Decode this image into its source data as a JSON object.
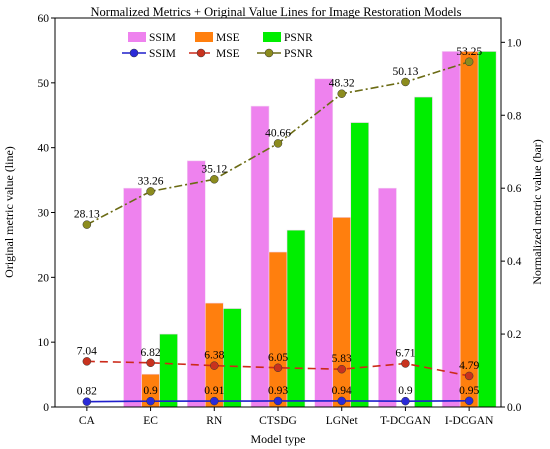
{
  "chart_data": {
    "type": "bar",
    "title": "Normalized Metrics + Original Value Lines for Image Restoration Models",
    "xlabel": "Model type",
    "ylabel_left": "Original metric value (line)",
    "ylabel_right": "Normalized metric value (bar)",
    "categories": [
      "CA",
      "EC",
      "RN",
      "CTSDG",
      "LGNet",
      "T-DCGAN",
      "I-DCGAN"
    ],
    "ylim_left": [
      0,
      60
    ],
    "ylim_right": [
      0,
      1.0667
    ],
    "yticks_left": [
      0,
      10,
      20,
      30,
      40,
      50,
      60
    ],
    "yticks_right": [
      0.0,
      0.2,
      0.4,
      0.6,
      0.8,
      1.0
    ],
    "bar_series": [
      {
        "name": "SSIM",
        "color": "#ee82ee",
        "values": [
          0.0,
          0.6,
          0.675,
          0.825,
          0.9,
          0.6,
          0.975
        ]
      },
      {
        "name": "MSE",
        "color": "#ff7f0e",
        "values": [
          0.0,
          0.09,
          0.285,
          0.425,
          0.52,
          0.0,
          0.975
        ]
      },
      {
        "name": "PSNR",
        "color": "#00ee00",
        "values": [
          0.0,
          0.2,
          0.27,
          0.485,
          0.78,
          0.85,
          0.975
        ]
      }
    ],
    "line_series": [
      {
        "name": "SSIM",
        "color": "#1f1fcc",
        "marker_color": "#2a2ad8",
        "dash": "solid",
        "values": [
          0.82,
          0.9,
          0.91,
          0.93,
          0.94,
          0.9,
          0.95
        ],
        "plot_values": [
          0.82,
          0.9,
          0.91,
          0.93,
          0.94,
          0.9,
          0.95
        ],
        "labels": [
          "0.82",
          "0.9",
          "0.91",
          "0.93",
          "0.94",
          "0.9",
          "0.95"
        ]
      },
      {
        "name": "MSE",
        "color": "#cc2a1a",
        "marker_color": "#c8321e",
        "dash": "dashed",
        "values": [
          7.04,
          6.82,
          6.38,
          6.05,
          5.83,
          6.71,
          4.79
        ],
        "plot_values": [
          7.04,
          6.82,
          6.38,
          6.05,
          5.83,
          6.71,
          4.79
        ],
        "labels": [
          "7.04",
          "6.82",
          "6.38",
          "6.05",
          "5.83",
          "6.71",
          "4.79"
        ]
      },
      {
        "name": "PSNR",
        "color": "#6b6b14",
        "marker_color": "#8c8c1e",
        "dash": "dashdot",
        "values": [
          28.13,
          33.26,
          35.12,
          40.66,
          48.32,
          50.13,
          53.25
        ],
        "plot_values": [
          28.13,
          33.26,
          35.12,
          40.66,
          48.32,
          50.13,
          53.25
        ],
        "labels": [
          "28.13",
          "33.26",
          "35.12",
          "40.66",
          "48.32",
          "50.13",
          "53.25"
        ]
      }
    ],
    "legend_placement": "top-center",
    "grid": false
  }
}
